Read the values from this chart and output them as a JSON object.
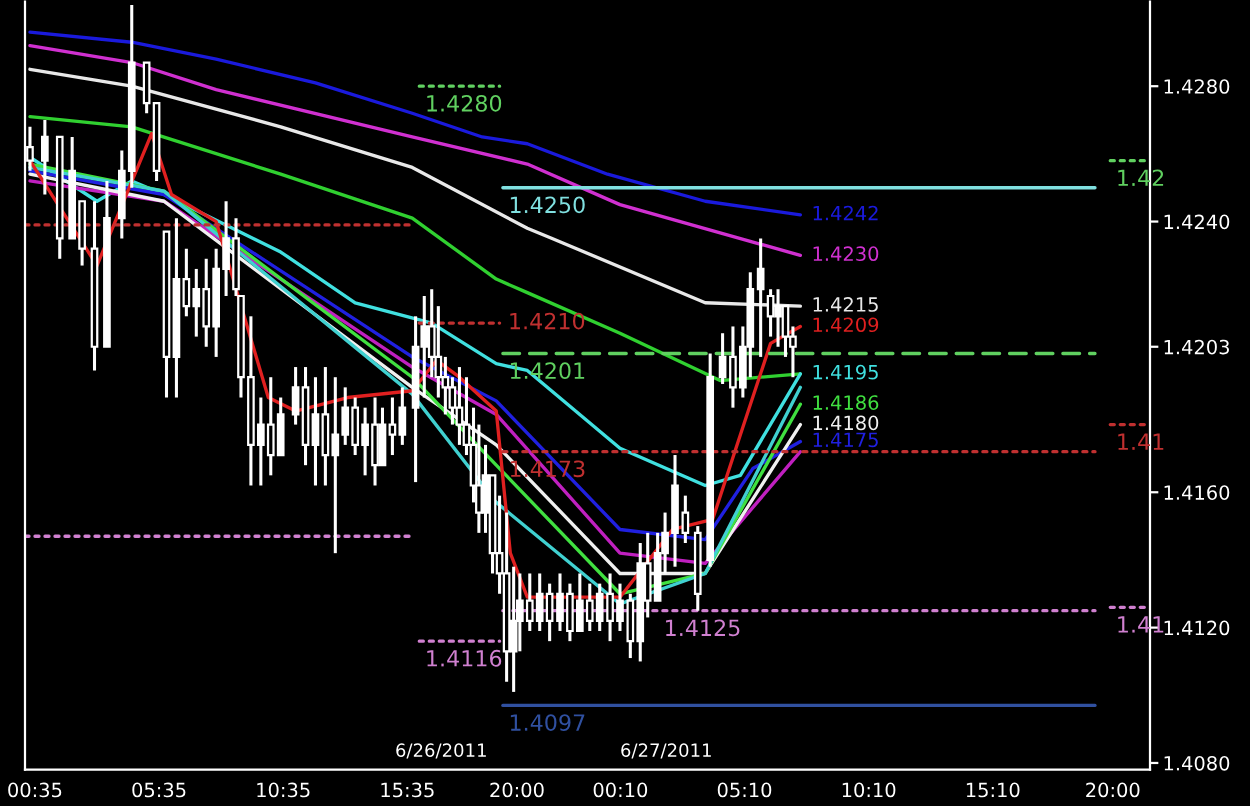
{
  "chart_data": {
    "type": "candlestick",
    "color": "#ffffff",
    "x": [
      "2011-06-26T00:23",
      "2011-06-26T00:59",
      "2011-06-26T01:35",
      "2011-06-26T02:05",
      "2011-06-26T02:29",
      "2011-06-26T02:59",
      "2011-06-26T03:29",
      "2011-06-26T04:05",
      "2011-06-26T04:29",
      "2011-06-26T05:05",
      "2011-06-26T05:29",
      "2011-06-26T05:53",
      "2011-06-26T06:17",
      "2011-06-26T06:41",
      "2011-06-26T07:05",
      "2011-06-26T07:29",
      "2011-06-26T07:53",
      "2011-06-26T08:17",
      "2011-06-26T08:41",
      "2011-06-26T08:53",
      "2011-06-26T09:17",
      "2011-06-26T09:41",
      "2011-06-26T10:05",
      "2011-06-26T10:29",
      "2011-06-26T11:05",
      "2011-06-26T11:29",
      "2011-06-26T11:53",
      "2011-06-26T12:17",
      "2011-06-26T12:41",
      "2011-06-26T13:05",
      "2011-06-26T13:29",
      "2011-06-26T13:53",
      "2011-06-26T14:17",
      "2011-06-26T14:35",
      "2011-06-26T14:59",
      "2011-06-26T15:23",
      "2011-06-26T15:55",
      "2011-06-26T16:16",
      "2011-06-26T16:34",
      "2011-06-26T16:50",
      "2011-06-26T17:07",
      "2011-06-26T17:24",
      "2011-06-26T17:41",
      "2011-06-26T17:58",
      "2011-06-26T18:15",
      "2011-06-26T18:28",
      "2011-06-26T18:44",
      "2011-06-26T19:01",
      "2011-06-26T19:18",
      "2011-06-26T19:35",
      "2011-06-26T19:52",
      "2011-06-26T20:07",
      "2011-06-26T20:31",
      "2011-06-26T20:55",
      "2011-06-26T21:19",
      "2011-06-26T21:44",
      "2011-06-26T22:08",
      "2011-06-26T22:32",
      "2011-06-26T22:56",
      "2011-06-26T23:20",
      "2011-06-26T23:45",
      "2011-06-27T00:09",
      "2011-06-27T00:34",
      "2011-06-27T00:58",
      "2011-06-27T01:16",
      "2011-06-27T01:40",
      "2011-06-27T01:58",
      "2011-06-27T02:22",
      "2011-06-27T02:47",
      "2011-06-27T03:17",
      "2011-06-27T03:47",
      "2011-06-27T04:17",
      "2011-06-27T04:42",
      "2011-06-27T05:06",
      "2011-06-27T05:24",
      "2011-06-27T05:49",
      "2011-06-27T06:13",
      "2011-06-27T06:31",
      "2011-06-27T06:49",
      "2011-06-27T07:07"
    ],
    "ohlc": [
      [
        1.4262,
        1.4268,
        1.4255,
        1.4258
      ],
      [
        1.4258,
        1.427,
        1.4248,
        1.4265
      ],
      [
        1.4265,
        1.4265,
        1.4229,
        1.4235
      ],
      [
        1.4235,
        1.4265,
        1.4235,
        1.4255
      ],
      [
        1.4246,
        1.4246,
        1.4227,
        1.4232
      ],
      [
        1.4232,
        1.4246,
        1.4196,
        1.4203
      ],
      [
        1.4203,
        1.4252,
        1.4203,
        1.4241
      ],
      [
        1.4241,
        1.4261,
        1.4235,
        1.4255
      ],
      [
        1.4255,
        1.4304,
        1.425,
        1.4287
      ],
      [
        1.4287,
        1.4287,
        1.4272,
        1.4275
      ],
      [
        1.4275,
        1.4275,
        1.4252,
        1.4255
      ],
      [
        1.4237,
        1.4237,
        1.4188,
        1.42
      ],
      [
        1.42,
        1.4241,
        1.4188,
        1.4223
      ],
      [
        1.4223,
        1.4232,
        1.4212,
        1.4215
      ],
      [
        1.4215,
        1.4226,
        1.4206,
        1.422
      ],
      [
        1.422,
        1.4229,
        1.4203,
        1.4209
      ],
      [
        1.4209,
        1.4232,
        1.42,
        1.4226
      ],
      [
        1.4226,
        1.4246,
        1.4218,
        1.4235
      ],
      [
        1.4235,
        1.4241,
        1.4218,
        1.422
      ],
      [
        1.4218,
        1.4218,
        1.4188,
        1.4194
      ],
      [
        1.4194,
        1.4212,
        1.4162,
        1.4174
      ],
      [
        1.4174,
        1.4188,
        1.4162,
        1.418
      ],
      [
        1.418,
        1.4194,
        1.4165,
        1.4171
      ],
      [
        1.4171,
        1.4188,
        1.4171,
        1.4183
      ],
      [
        1.4183,
        1.4197,
        1.418,
        1.4191
      ],
      [
        1.4191,
        1.4197,
        1.4168,
        1.4174
      ],
      [
        1.4174,
        1.4194,
        1.4162,
        1.4183
      ],
      [
        1.4183,
        1.4197,
        1.4162,
        1.4171
      ],
      [
        1.4171,
        1.4194,
        1.4142,
        1.4177
      ],
      [
        1.4177,
        1.4191,
        1.4174,
        1.4185
      ],
      [
        1.4185,
        1.4188,
        1.4171,
        1.4174
      ],
      [
        1.4174,
        1.4185,
        1.4165,
        1.418
      ],
      [
        1.418,
        1.4188,
        1.4162,
        1.4168
      ],
      [
        1.4168,
        1.4185,
        1.4168,
        1.418
      ],
      [
        1.418,
        1.4188,
        1.4171,
        1.4177
      ],
      [
        1.4177,
        1.4191,
        1.4174,
        1.4185
      ],
      [
        1.4185,
        1.4212,
        1.4163,
        1.4203
      ],
      [
        1.4203,
        1.4218,
        1.4188,
        1.4209
      ],
      [
        1.4209,
        1.422,
        1.4194,
        1.42
      ],
      [
        1.42,
        1.4215,
        1.4188,
        1.4194
      ],
      [
        1.4194,
        1.42,
        1.4183,
        1.4191
      ],
      [
        1.4191,
        1.4194,
        1.418,
        1.4185
      ],
      [
        1.4185,
        1.4197,
        1.4174,
        1.418
      ],
      [
        1.418,
        1.4194,
        1.4171,
        1.4174
      ],
      [
        1.4174,
        1.4185,
        1.4157,
        1.4162
      ],
      [
        1.4162,
        1.418,
        1.4148,
        1.4154
      ],
      [
        1.4154,
        1.4174,
        1.4148,
        1.4165
      ],
      [
        1.4165,
        1.4165,
        1.4136,
        1.4142
      ],
      [
        1.4142,
        1.4159,
        1.413,
        1.4136
      ],
      [
        1.4136,
        1.4154,
        1.4104,
        1.4113
      ],
      [
        1.4113,
        1.4138,
        1.4101,
        1.4122
      ],
      [
        1.4122,
        1.4136,
        1.4113,
        1.4128
      ],
      [
        1.4128,
        1.4136,
        1.4119,
        1.4122
      ],
      [
        1.4122,
        1.4136,
        1.4119,
        1.413
      ],
      [
        1.413,
        1.4133,
        1.4116,
        1.4122
      ],
      [
        1.4122,
        1.4136,
        1.4119,
        1.413
      ],
      [
        1.413,
        1.4133,
        1.4116,
        1.4119
      ],
      [
        1.4119,
        1.4136,
        1.4119,
        1.4128
      ],
      [
        1.4128,
        1.4133,
        1.4119,
        1.4122
      ],
      [
        1.4122,
        1.4133,
        1.4119,
        1.413
      ],
      [
        1.413,
        1.4136,
        1.4116,
        1.4122
      ],
      [
        1.4122,
        1.4133,
        1.4119,
        1.4128
      ],
      [
        1.4128,
        1.413,
        1.4111,
        1.4116
      ],
      [
        1.4116,
        1.4145,
        1.411,
        1.4139
      ],
      [
        1.4139,
        1.4148,
        1.4123,
        1.4128
      ],
      [
        1.4128,
        1.4148,
        1.4128,
        1.4142
      ],
      [
        1.4142,
        1.4154,
        1.4136,
        1.4148
      ],
      [
        1.4148,
        1.4171,
        1.4138,
        1.4162
      ],
      [
        1.4154,
        1.4159,
        1.4145,
        1.4148
      ],
      [
        1.4148,
        1.415,
        1.4125,
        1.413
      ],
      [
        1.414,
        1.4201,
        1.4138,
        1.4194
      ],
      [
        1.4194,
        1.4207,
        1.4192,
        1.42
      ],
      [
        1.42,
        1.4209,
        1.4185,
        1.4191
      ],
      [
        1.4191,
        1.4209,
        1.4188,
        1.4203
      ],
      [
        1.4203,
        1.4225,
        1.4194,
        1.422
      ],
      [
        1.422,
        1.4235,
        1.42,
        1.4226
      ],
      [
        1.4218,
        1.422,
        1.4206,
        1.4212
      ],
      [
        1.4212,
        1.422,
        1.4203,
        1.4215
      ],
      [
        1.4215,
        1.4215,
        1.42,
        1.4206
      ],
      [
        1.4206,
        1.4209,
        1.4194,
        1.4203
      ]
    ],
    "series": [
      {
        "type": "line",
        "name": "1.4242",
        "color": "#1a1adc",
        "x": [
          "2011-06-26T00:23",
          "2011-06-26T04:29",
          "2011-06-26T07:53",
          "2011-06-26T11:53",
          "2011-06-26T15:47",
          "2011-06-26T18:36",
          "2011-06-26T20:25",
          "2011-06-26T23:39",
          "2011-06-27T03:35",
          "2011-06-27T07:25"
        ],
        "values": [
          1.4296,
          1.4293,
          1.4288,
          1.4281,
          1.4272,
          1.4265,
          1.4263,
          1.4254,
          1.4246,
          1.4242
        ]
      },
      {
        "type": "line",
        "name": "1.4230",
        "color": "#d030d0",
        "x": [
          "2011-06-26T00:23",
          "2011-06-26T04:29",
          "2011-06-26T07:53",
          "2011-06-26T15:47",
          "2011-06-26T20:25",
          "2011-06-27T00:09",
          "2011-06-27T07:25"
        ],
        "values": [
          1.4292,
          1.4287,
          1.4279,
          1.4265,
          1.4257,
          1.4245,
          1.423
        ]
      },
      {
        "type": "line",
        "name": "1.4215",
        "color": "#e8e8e8",
        "x": [
          "2011-06-26T00:23",
          "2011-06-26T04:29",
          "2011-06-26T10:29",
          "2011-06-26T15:47",
          "2011-06-26T20:25",
          "2011-06-26T21:25",
          "2011-06-27T03:35",
          "2011-06-27T07:25"
        ],
        "values": [
          1.4285,
          1.428,
          1.4268,
          1.4256,
          1.4238,
          1.4235,
          1.4216,
          1.4215
        ]
      },
      {
        "type": "line",
        "color": "#30d030",
        "x": [
          "2011-06-26T00:23",
          "2011-06-26T04:29",
          "2011-06-26T10:29",
          "2011-06-26T15:47",
          "2011-06-26T19:10",
          "2011-06-26T20:25",
          "2011-06-27T00:09",
          "2011-06-27T04:11",
          "2011-06-27T07:25"
        ],
        "values": [
          1.4271,
          1.4268,
          1.4254,
          1.4241,
          1.4223,
          1.4219,
          1.4207,
          1.4193,
          1.4195
        ]
      },
      {
        "type": "line",
        "name": "1.4195",
        "color": "#40e0e0",
        "x": [
          "2011-06-26T00:23",
          "2011-06-26T03:05",
          "2011-06-26T04:29",
          "2011-06-26T05:47",
          "2011-06-26T10:29",
          "2011-06-26T13:29",
          "2011-06-26T16:34",
          "2011-06-26T19:10",
          "2011-06-26T20:25",
          "2011-06-27T00:09",
          "2011-06-27T03:35",
          "2011-06-27T05:00",
          "2011-06-27T07:25"
        ],
        "values": [
          1.4259,
          1.4246,
          1.4252,
          1.4248,
          1.4231,
          1.4216,
          1.421,
          1.4198,
          1.4196,
          1.4173,
          1.4162,
          1.4165,
          1.4195
        ]
      },
      {
        "type": "line",
        "name": "1.4175",
        "color": "#2020e0",
        "x": [
          "2011-06-26T00:23",
          "2011-06-26T05:47",
          "2011-06-26T15:47",
          "2011-06-26T19:10",
          "2011-06-27T00:09",
          "2011-06-27T03:35",
          "2011-06-27T05:30",
          "2011-06-27T07:25"
        ],
        "values": [
          1.4255,
          1.4248,
          1.42,
          1.4187,
          1.4149,
          1.4146,
          1.4167,
          1.4175
        ]
      },
      {
        "type": "line",
        "color": "#c020c0",
        "x": [
          "2011-06-26T00:23",
          "2011-06-26T05:47",
          "2011-06-26T15:47",
          "2011-06-26T19:10",
          "2011-06-27T00:09",
          "2011-06-27T03:35",
          "2011-06-27T07:25"
        ],
        "values": [
          1.4252,
          1.4246,
          1.4197,
          1.4183,
          1.4142,
          1.4139,
          1.4172
        ]
      },
      {
        "type": "line",
        "name": "1.4180",
        "color": "#f0f0f0",
        "x": [
          "2011-06-26T00:23",
          "2011-06-26T05:47",
          "2011-06-26T15:47",
          "2011-06-26T19:10",
          "2011-06-27T00:09",
          "2011-06-27T03:35",
          "2011-06-27T07:25"
        ],
        "values": [
          1.4254,
          1.4246,
          1.4191,
          1.4174,
          1.4136,
          1.4136,
          1.418
        ]
      },
      {
        "type": "line",
        "name": "1.4186",
        "color": "#40e040",
        "x": [
          "2011-06-26T00:23",
          "2011-06-26T05:47",
          "2011-06-26T15:47",
          "2011-06-26T19:10",
          "2011-06-27T00:09",
          "2011-06-27T03:35",
          "2011-06-27T07:25"
        ],
        "values": [
          1.4257,
          1.4249,
          1.4194,
          1.4168,
          1.413,
          1.4136,
          1.4186
        ]
      },
      {
        "type": "line",
        "color": "#40d0d0",
        "x": [
          "2011-06-26T00:23",
          "2011-06-26T05:47",
          "2011-06-26T15:47",
          "2011-06-26T19:10",
          "2011-06-27T00:09",
          "2011-06-27T03:35",
          "2011-06-27T07:25"
        ],
        "values": [
          1.4256,
          1.4249,
          1.4189,
          1.4157,
          1.4127,
          1.4136,
          1.4191
        ]
      },
      {
        "type": "line",
        "name": "1.4209",
        "color": "#e02020",
        "x": [
          "2011-06-26T00:23",
          "2011-06-26T03:05",
          "2011-06-26T05:17",
          "2011-06-26T06:05",
          "2011-06-26T07:53",
          "2011-06-26T09:59",
          "2011-06-26T11:05",
          "2011-06-26T13:11",
          "2011-06-26T15:47",
          "2011-06-26T16:46",
          "2011-06-26T17:41",
          "2011-06-26T19:10",
          "2011-06-26T19:44",
          "2011-06-26T20:25",
          "2011-06-27T00:09",
          "2011-06-27T02:16",
          "2011-06-27T03:53",
          "2011-06-27T05:00",
          "2011-06-27T06:13",
          "2011-06-27T07:25"
        ],
        "values": [
          1.4258,
          1.4227,
          1.4266,
          1.4248,
          1.424,
          1.4188,
          1.4184,
          1.4188,
          1.419,
          1.4199,
          1.4194,
          1.4184,
          1.4142,
          1.4129,
          1.4129,
          1.4149,
          1.4152,
          1.4177,
          1.4204,
          1.4209
        ]
      },
      {
        "type": "line",
        "color": "#c03030",
        "line_style": "dotted",
        "x": [
          "2011-06-26T00:11",
          "2011-06-26T15:47"
        ],
        "values": [
          1.4239,
          1.4239
        ]
      },
      {
        "type": "line",
        "color": "#d080d0",
        "line_style": "dotted",
        "x": [
          "2011-06-26T00:11",
          "2011-06-26T15:47"
        ],
        "values": [
          1.4147,
          1.4147
        ]
      },
      {
        "type": "line",
        "name": "1.4280",
        "color": "#60d060",
        "line_style": "dotted",
        "x": [
          "2011-06-26T16:04",
          "2011-06-26T19:18"
        ],
        "values": [
          1.428,
          1.428
        ]
      },
      {
        "type": "line",
        "name": "1.4210",
        "color": "#c03030",
        "line_style": "dotted",
        "x": [
          "2011-06-26T16:04",
          "2011-06-26T19:18"
        ],
        "values": [
          1.421,
          1.421
        ]
      },
      {
        "type": "line",
        "name": "1.4116",
        "color": "#d080d0",
        "line_style": "dotted",
        "x": [
          "2011-06-26T16:04",
          "2011-06-26T19:18"
        ],
        "values": [
          1.4116,
          1.4116
        ]
      },
      {
        "type": "line",
        "name": "1.4250",
        "color": "#80e0e0",
        "x": [
          "2011-06-26T19:26",
          "2011-06-27T19:17"
        ],
        "values": [
          1.425,
          1.425
        ]
      },
      {
        "type": "line",
        "name": "1.4201",
        "color": "#60d060",
        "line_style": "dashed",
        "x": [
          "2011-06-26T19:26",
          "2011-06-27T19:17"
        ],
        "values": [
          1.4201,
          1.4201
        ]
      },
      {
        "type": "line",
        "name": "1.4173",
        "color": "#c03030",
        "line_style": "dotted",
        "x": [
          "2011-06-26T19:26",
          "2011-06-27T19:17"
        ],
        "values": [
          1.4172,
          1.4172
        ]
      },
      {
        "type": "line",
        "name": "1.4125",
        "color": "#d080d0",
        "line_style": "dotted",
        "x": [
          "2011-06-26T19:26",
          "2011-06-27T19:17"
        ],
        "values": [
          1.4125,
          1.4125
        ]
      },
      {
        "type": "line",
        "name": "1.4097",
        "color": "#3050a0",
        "x": [
          "2011-06-26T19:26",
          "2011-06-27T19:17"
        ],
        "values": [
          1.4097,
          1.4097
        ]
      },
      {
        "type": "line",
        "name": "1.42",
        "color": "#60d060",
        "line_style": "dotted",
        "x": [
          "2011-06-27T19:54",
          "2011-06-27T21:30"
        ],
        "values": [
          1.4258,
          1.4258
        ]
      },
      {
        "type": "line",
        "name": "1.41",
        "color": "#c03030",
        "line_style": "dotted",
        "x": [
          "2011-06-27T19:54",
          "2011-06-27T21:30"
        ],
        "values": [
          1.418,
          1.418
        ]
      },
      {
        "type": "line",
        "name": "1.41",
        "color": "#d080d0",
        "line_style": "dotted",
        "x": [
          "2011-06-27T19:54",
          "2011-06-27T21:30"
        ],
        "values": [
          1.4126,
          1.4126
        ]
      }
    ],
    "annotations": [
      "6/26/2011",
      "6/27/2011"
    ],
    "xlim": [
      "2011-06-26T00:11",
      "2011-06-27T21:30"
    ],
    "ylim": [
      1.4078,
      1.4305
    ],
    "xticks": [
      {
        "value": "2011-06-26T00:35",
        "label": "00:35"
      },
      {
        "value": "2011-06-26T05:35",
        "label": "05:35"
      },
      {
        "value": "2011-06-26T10:35",
        "label": "10:35"
      },
      {
        "value": "2011-06-26T15:35",
        "label": "15:35"
      },
      {
        "value": "2011-06-26T20:00",
        "label": "20:00"
      },
      {
        "value": "2011-06-27T00:10",
        "label": "00:10"
      },
      {
        "value": "2011-06-27T05:10",
        "label": "05:10"
      },
      {
        "value": "2011-06-27T10:10",
        "label": "10:10"
      },
      {
        "value": "2011-06-27T15:10",
        "label": "15:10"
      },
      {
        "value": "2011-06-27T20:00",
        "label": "20:00"
      }
    ],
    "yticks": [
      {
        "value": 1.408,
        "label": "1.4080"
      },
      {
        "value": 1.412,
        "label": "1.4120"
      },
      {
        "value": 1.416,
        "label": "1.4160"
      },
      {
        "value": 1.4203,
        "label": "1.4203"
      },
      {
        "value": 1.424,
        "label": "1.4240"
      },
      {
        "value": 1.428,
        "label": "1.4280"
      }
    ]
  }
}
